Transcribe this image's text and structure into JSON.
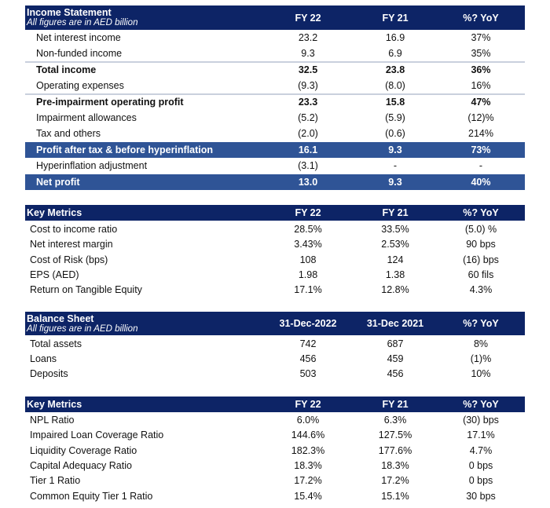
{
  "colors": {
    "header": "#0d2466",
    "highlight_band": "#2f5496"
  },
  "income_statement": {
    "title": "Income Statement",
    "subtitle": "All figures are in AED billion",
    "columns": [
      "FY 22",
      "FY 21",
      "%? YoY"
    ],
    "rows": [
      {
        "label": "Net interest income",
        "values": [
          "23.2",
          "16.9",
          "37%"
        ],
        "style": "normal"
      },
      {
        "label": "Non-funded income",
        "values": [
          "9.3",
          "6.9",
          "35%"
        ],
        "style": "normal"
      },
      {
        "label": "Total income",
        "values": [
          "32.5",
          "23.8",
          "36%"
        ],
        "style": "bold"
      },
      {
        "label": "Operating expenses",
        "values": [
          "(9.3)",
          "(8.0)",
          "16%"
        ],
        "style": "normal"
      },
      {
        "label": "Pre-impairment operating profit",
        "values": [
          "23.3",
          "15.8",
          "47%"
        ],
        "style": "bold"
      },
      {
        "label": "Impairment allowances",
        "values": [
          "(5.2)",
          "(5.9)",
          "(12)%"
        ],
        "style": "normal"
      },
      {
        "label": "Tax and others",
        "values": [
          "(2.0)",
          "(0.6)",
          "214%"
        ],
        "style": "normal"
      },
      {
        "label": "Profit after tax & before hyperinflation",
        "values": [
          "16.1",
          "9.3",
          "73%"
        ],
        "style": "band"
      },
      {
        "label": "Hyperinflation adjustment",
        "values": [
          "(3.1)",
          "-",
          "-"
        ],
        "style": "normal"
      },
      {
        "label": "Net profit",
        "values": [
          "13.0",
          "9.3",
          "40%"
        ],
        "style": "band"
      }
    ]
  },
  "key_metrics_1": {
    "title": "Key Metrics",
    "columns": [
      "FY 22",
      "FY 21",
      "%? YoY"
    ],
    "rows": [
      {
        "label": "Cost to income ratio",
        "values": [
          "28.5%",
          "33.5%",
          "(5.0) %"
        ]
      },
      {
        "label": "Net interest margin",
        "values": [
          "3.43%",
          "2.53%",
          "90 bps"
        ]
      },
      {
        "label": "Cost of Risk (bps)",
        "values": [
          "108",
          "124",
          "(16) bps"
        ]
      },
      {
        "label": "EPS (AED)",
        "values": [
          "1.98",
          "1.38",
          "60 fils"
        ]
      },
      {
        "label": "Return on Tangible Equity",
        "values": [
          "17.1%",
          "12.8%",
          "4.3%"
        ]
      }
    ]
  },
  "balance_sheet": {
    "title": "Balance Sheet",
    "subtitle": "All figures are in AED billion",
    "columns": [
      "31-Dec-2022",
      "31-Dec 2021",
      "%? YoY"
    ],
    "rows": [
      {
        "label": "Total assets",
        "values": [
          "742",
          "687",
          "8%"
        ]
      },
      {
        "label": "Loans",
        "values": [
          "456",
          "459",
          "(1)%"
        ]
      },
      {
        "label": "Deposits",
        "values": [
          "503",
          "456",
          "10%"
        ]
      }
    ]
  },
  "key_metrics_2": {
    "title": "Key Metrics",
    "columns": [
      "FY 22",
      "FY 21",
      "%? YoY"
    ],
    "rows": [
      {
        "label": "NPL Ratio",
        "values": [
          "6.0%",
          "6.3%",
          "(30) bps"
        ]
      },
      {
        "label": "Impaired Loan Coverage Ratio",
        "values": [
          "144.6%",
          "127.5%",
          "17.1%"
        ]
      },
      {
        "label": "Liquidity Coverage Ratio",
        "values": [
          "182.3%",
          "177.6%",
          "4.7%"
        ]
      },
      {
        "label": "Capital Adequacy Ratio",
        "values": [
          "18.3%",
          "18.3%",
          "0 bps"
        ]
      },
      {
        "label": "Tier 1 Ratio",
        "values": [
          "17.2%",
          "17.2%",
          "0 bps"
        ]
      },
      {
        "label": "Common Equity Tier 1 Ratio",
        "values": [
          "15.4%",
          "15.1%",
          "30 bps"
        ]
      }
    ]
  }
}
